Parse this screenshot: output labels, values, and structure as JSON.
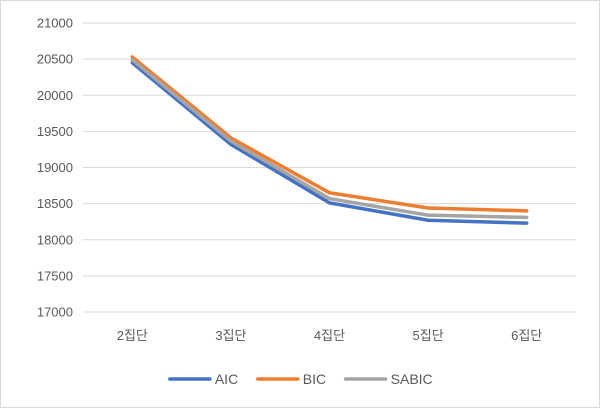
{
  "chart_data": {
    "type": "line",
    "categories": [
      "2집단",
      "3집단",
      "4집단",
      "5집단",
      "6집단"
    ],
    "series": [
      {
        "name": "AIC",
        "color": "#4472c4",
        "values": [
          20450,
          19320,
          18510,
          18270,
          18230
        ]
      },
      {
        "name": "BIC",
        "color": "#ed7d31",
        "values": [
          20530,
          19410,
          18650,
          18440,
          18400
        ]
      },
      {
        "name": "SABIC",
        "color": "#a5a5a5",
        "values": [
          20490,
          19365,
          18570,
          18340,
          18310
        ]
      }
    ],
    "ylim": [
      17000,
      21000
    ],
    "yticks": [
      "17000",
      "17500",
      "18000",
      "18500",
      "19000",
      "19500",
      "20000",
      "20500",
      "21000"
    ],
    "grid": true,
    "legend_position": "bottom",
    "title": "",
    "xlabel": "",
    "ylabel": ""
  }
}
